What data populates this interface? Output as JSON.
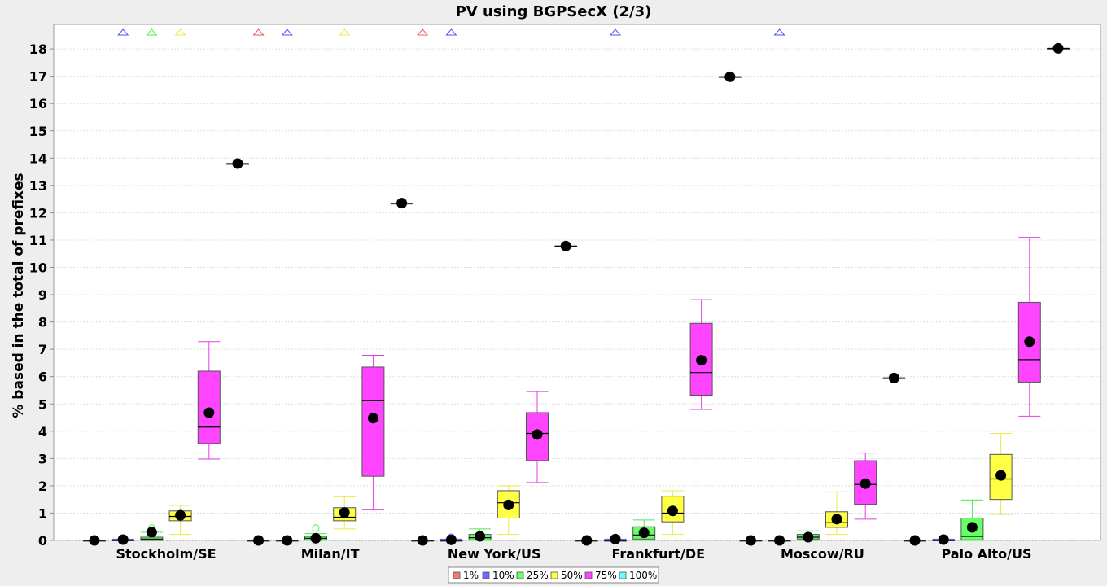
{
  "chart_data": {
    "type": "box",
    "title": "PV using BGPSecX  (2/3)",
    "ylabel": "% based in the total of prefixes",
    "xlabel": "",
    "ylim": [
      0,
      18.9
    ],
    "yticks": [
      0,
      1,
      2,
      3,
      4,
      5,
      6,
      7,
      8,
      9,
      10,
      11,
      12,
      13,
      14,
      15,
      16,
      17,
      18
    ],
    "grid": true,
    "legend_position": "bottom-center",
    "categories": [
      "Stockholm/SE",
      "Milan/IT",
      "New York/US",
      "Frankfurt/DE",
      "Moscow/RU",
      "Palo Alto/US"
    ],
    "series": [
      {
        "name": "1%",
        "color": "#e85a5a",
        "fill": "#f07a7a",
        "boxes": [
          {
            "min": 0,
            "q1": 0,
            "median": 0,
            "q3": 0,
            "max": 0,
            "mean": 0
          },
          {
            "min": 0,
            "q1": 0,
            "median": 0,
            "q3": 0,
            "max": 0,
            "mean": 0
          },
          {
            "min": 0,
            "q1": 0,
            "median": 0,
            "q3": 0,
            "max": 0,
            "mean": 0
          },
          {
            "min": 0,
            "q1": 0,
            "median": 0,
            "q3": 0,
            "max": 0,
            "mean": 0
          },
          {
            "min": 0,
            "q1": 0,
            "median": 0,
            "q3": 0,
            "max": 0,
            "mean": 0
          },
          {
            "min": 0,
            "q1": 0,
            "median": 0,
            "q3": 0,
            "max": 0,
            "mean": 0
          }
        ],
        "far_outliers": [
          1,
          2
        ]
      },
      {
        "name": "10%",
        "color": "#5050ff",
        "fill": "#6a6aff",
        "boxes": [
          {
            "min": 0,
            "q1": 0,
            "median": 0,
            "q3": 0.02,
            "max": 0.05,
            "mean": 0.03
          },
          {
            "min": 0,
            "q1": 0,
            "median": 0,
            "q3": 0,
            "max": 0,
            "mean": 0
          },
          {
            "min": 0,
            "q1": 0,
            "median": 0,
            "q3": 0,
            "max": 0.05,
            "mean": 0.02,
            "outliers": [
              0.12
            ]
          },
          {
            "min": 0,
            "q1": 0,
            "median": 0,
            "q3": 0,
            "max": 0.05,
            "mean": 0.05
          },
          {
            "min": 0,
            "q1": 0,
            "median": 0,
            "q3": 0,
            "max": 0,
            "mean": 0
          },
          {
            "min": 0,
            "q1": 0,
            "median": 0,
            "q3": 0.02,
            "max": 0.05,
            "mean": 0.03
          }
        ],
        "far_outliers": [
          0,
          1,
          2,
          3,
          4
        ]
      },
      {
        "name": "25%",
        "color": "#4ee84e",
        "fill": "#66ff66",
        "boxes": [
          {
            "min": 0,
            "q1": 0,
            "median": 0.05,
            "q3": 0.12,
            "max": 0.3,
            "mean": 0.3,
            "outliers": [
              0.45
            ]
          },
          {
            "min": 0,
            "q1": 0.02,
            "median": 0.08,
            "q3": 0.15,
            "max": 0.25,
            "mean": 0.08,
            "outliers": [
              0.45
            ]
          },
          {
            "min": 0,
            "q1": 0.02,
            "median": 0.1,
            "q3": 0.22,
            "max": 0.42,
            "mean": 0.15
          },
          {
            "min": 0,
            "q1": 0.05,
            "median": 0.2,
            "q3": 0.5,
            "max": 0.75,
            "mean": 0.28
          },
          {
            "min": 0,
            "q1": 0.05,
            "median": 0.12,
            "q3": 0.22,
            "max": 0.35,
            "mean": 0.12
          },
          {
            "min": 0,
            "q1": 0.02,
            "median": 0.15,
            "q3": 0.82,
            "max": 1.48,
            "mean": 0.48
          }
        ],
        "far_outliers": [
          0
        ]
      },
      {
        "name": "50%",
        "color": "#e8e84a",
        "fill": "#ffff44",
        "boxes": [
          {
            "min": 0.22,
            "q1": 0.72,
            "median": 0.88,
            "q3": 1.08,
            "max": 1.28,
            "mean": 0.92
          },
          {
            "min": 0.42,
            "q1": 0.72,
            "median": 0.85,
            "q3": 1.2,
            "max": 1.6,
            "mean": 1.02
          },
          {
            "min": 0.22,
            "q1": 0.82,
            "median": 1.38,
            "q3": 1.82,
            "max": 2.0,
            "mean": 1.3
          },
          {
            "min": 0.22,
            "q1": 0.68,
            "median": 1.0,
            "q3": 1.62,
            "max": 1.82,
            "mean": 1.08
          },
          {
            "min": 0.22,
            "q1": 0.48,
            "median": 0.65,
            "q3": 1.05,
            "max": 1.78,
            "mean": 0.78
          },
          {
            "min": 0.95,
            "q1": 1.5,
            "median": 2.25,
            "q3": 3.15,
            "max": 3.92,
            "mean": 2.38
          }
        ],
        "far_outliers": [
          0,
          1
        ]
      },
      {
        "name": "75%",
        "color": "#e040e0",
        "fill": "#ff44ff",
        "boxes": [
          {
            "min": 2.98,
            "q1": 3.55,
            "median": 4.15,
            "q3": 6.2,
            "max": 7.28,
            "mean": 4.68
          },
          {
            "min": 1.12,
            "q1": 2.35,
            "median": 5.12,
            "q3": 6.35,
            "max": 6.78,
            "mean": 4.48
          },
          {
            "min": 2.12,
            "q1": 2.92,
            "median": 3.92,
            "q3": 4.68,
            "max": 5.45,
            "mean": 3.88
          },
          {
            "min": 4.8,
            "q1": 5.32,
            "median": 6.15,
            "q3": 7.95,
            "max": 8.82,
            "mean": 6.6
          },
          {
            "min": 0.78,
            "q1": 1.32,
            "median": 2.05,
            "q3": 2.92,
            "max": 3.2,
            "mean": 2.08
          },
          {
            "min": 4.55,
            "q1": 5.8,
            "median": 6.62,
            "q3": 8.72,
            "max": 11.1,
            "mean": 7.28
          }
        ],
        "far_outliers": []
      },
      {
        "name": "100%",
        "color": "#44e0e0",
        "fill": "#66ffff",
        "boxes": [
          {
            "min": 13.8,
            "q1": 13.8,
            "median": 13.8,
            "q3": 13.8,
            "max": 13.8,
            "mean": 13.8
          },
          {
            "min": 12.35,
            "q1": 12.35,
            "median": 12.35,
            "q3": 12.35,
            "max": 12.35,
            "mean": 12.35
          },
          {
            "min": 10.78,
            "q1": 10.78,
            "median": 10.78,
            "q3": 10.78,
            "max": 10.78,
            "mean": 10.78
          },
          {
            "min": 16.98,
            "q1": 16.98,
            "median": 16.98,
            "q3": 16.98,
            "max": 16.98,
            "mean": 16.98
          },
          {
            "min": 5.95,
            "q1": 5.95,
            "median": 5.95,
            "q3": 5.95,
            "max": 5.95,
            "mean": 5.95
          },
          {
            "min": 18.02,
            "q1": 18.02,
            "median": 18.02,
            "q3": 18.02,
            "max": 18.02,
            "mean": 18.02
          }
        ],
        "far_outliers": []
      }
    ]
  }
}
